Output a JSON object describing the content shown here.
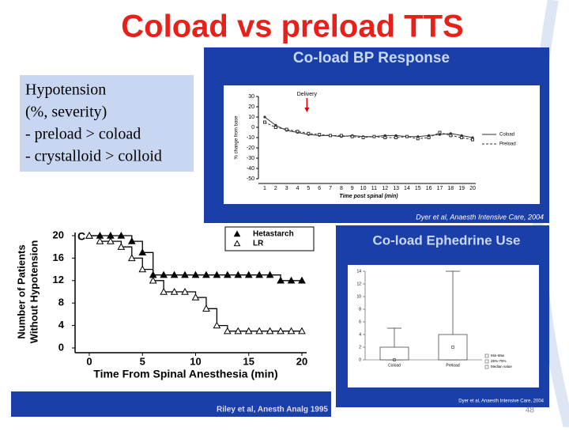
{
  "title": "Coload vs preload TTS",
  "textbox": {
    "lines": [
      "Hypotension",
      "(%, severity)",
      "- preload > coload",
      "- crystalloid > colloid"
    ]
  },
  "bp_chart": {
    "type": "line",
    "title": "Co-load BP Response",
    "annotation": "Delivery",
    "ylabel": "% change from base",
    "xlabel": "Time post spinal (min)",
    "categories": [
      1,
      2,
      3,
      4,
      5,
      6,
      7,
      8,
      9,
      10,
      11,
      12,
      13,
      14,
      15,
      16,
      17,
      18,
      19,
      20
    ],
    "series": [
      {
        "name": "Coload",
        "color": "#333333",
        "values": [
          10,
          2,
          -3,
          -5,
          -7,
          -8,
          -8,
          -9,
          -8,
          -9,
          -9,
          -8,
          -8,
          -9,
          -9,
          -8,
          -7,
          -6,
          -8,
          -10
        ]
      },
      {
        "name": "Preload",
        "color": "#333333",
        "values": [
          5,
          0,
          -2,
          -4,
          -6,
          -7,
          -8,
          -8,
          -9,
          -10,
          -9,
          -10,
          -10,
          -9,
          -11,
          -10,
          -5,
          -8,
          -10,
          -12
        ]
      }
    ],
    "ylim": [
      -50,
      30
    ],
    "yticks": [
      -50,
      -40,
      -30,
      -20,
      -10,
      0,
      10,
      20,
      30
    ],
    "source": "Dyer et al, Anaesth Intensive Care, 2004"
  },
  "patients_chart": {
    "type": "line",
    "panel_label": "C",
    "ylabel": [
      "Number of Patients",
      "Without Hypotension"
    ],
    "xlabel": "Time From Spinal Anesthesia (min)",
    "x": [
      0,
      1,
      2,
      3,
      4,
      5,
      6,
      7,
      8,
      9,
      10,
      11,
      12,
      13,
      14,
      15,
      16,
      17,
      18,
      19,
      20
    ],
    "series": [
      {
        "name": "Hetastarch",
        "color": "#000000",
        "values": [
          20,
          20,
          20,
          20,
          19,
          17,
          13,
          13,
          13,
          13,
          13,
          13,
          13,
          13,
          13,
          13,
          13,
          13,
          12,
          12,
          12
        ]
      },
      {
        "name": "LR",
        "color": "#000000",
        "values": [
          20,
          19,
          19,
          18,
          16,
          14,
          12,
          10,
          10,
          10,
          9,
          7,
          4,
          3,
          3,
          3,
          3,
          3,
          3,
          3,
          3
        ]
      }
    ],
    "xlim": [
      0,
      20
    ],
    "xticks": [
      0,
      5,
      10,
      15,
      20
    ],
    "ylim": [
      0,
      20
    ],
    "yticks": [
      0,
      4,
      8,
      12,
      16,
      20
    ],
    "source": "Riley et al, Anesth Analg 1995"
  },
  "ephedrine_chart": {
    "type": "box",
    "title": "Co-load Ephedrine Use",
    "boxes": [
      {
        "name": "Coload",
        "min": 0,
        "q1": 0,
        "median": 0,
        "q3": 2,
        "max": 5
      },
      {
        "name": "Preload",
        "min": 0,
        "q1": 0,
        "median": 2,
        "q3": 4,
        "max": 14
      }
    ],
    "ylim": [
      0,
      14
    ],
    "yticks": [
      0,
      2,
      4,
      6,
      8,
      10,
      12,
      14
    ],
    "legend": [
      "Min-Max",
      "25%-75%",
      "Median value"
    ],
    "source": "Dyer et al, Anaesth Intensive Care, 2004"
  },
  "page_number": "48"
}
